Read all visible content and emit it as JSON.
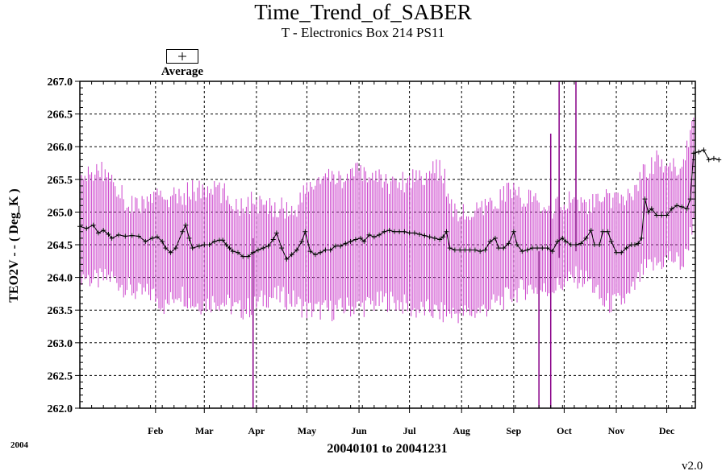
{
  "chart_data": {
    "type": "line",
    "title": "Time_Trend_of_SABER",
    "subtitle": "T - Electronics Box 214 PS11",
    "ylabel": "TEO2V  - - ( Deg_K )",
    "xlabel": "20040101 to 20041231",
    "year_label": "2004",
    "version": "v2.0",
    "legend": {
      "entries": [
        {
          "name": "Average",
          "marker": "+"
        }
      ],
      "placement": "top-left"
    },
    "ylim": [
      262.0,
      267.0
    ],
    "y_ticks": [
      "262.0",
      "262.5",
      "263.0",
      "263.5",
      "264.0",
      "264.5",
      "265.0",
      "265.5",
      "266.0",
      "266.5",
      "267.0"
    ],
    "x_month_ticks": [
      {
        "label": "Feb",
        "day": 46
      },
      {
        "label": "Mar",
        "day": 75
      },
      {
        "label": "Apr",
        "day": 106
      },
      {
        "label": "May",
        "day": 136
      },
      {
        "label": "Jun",
        "day": 167
      },
      {
        "label": "Jul",
        "day": 197
      },
      {
        "label": "Aug",
        "day": 228
      },
      {
        "label": "Sep",
        "day": 259
      },
      {
        "label": "Oct",
        "day": 289
      },
      {
        "label": "Nov",
        "day": 320
      },
      {
        "label": "Dec",
        "day": 350
      }
    ],
    "xlim_days": [
      1,
      367
    ],
    "grid": true,
    "colors": {
      "range": "#cc44cc",
      "average": "#000000",
      "grid": "#000000"
    },
    "series": [
      {
        "name": "Average",
        "points": [
          [
            1,
            264.78
          ],
          [
            5,
            264.75
          ],
          [
            9,
            264.8
          ],
          [
            12,
            264.68
          ],
          [
            15,
            264.72
          ],
          [
            18,
            264.66
          ],
          [
            20,
            264.6
          ],
          [
            24,
            264.65
          ],
          [
            28,
            264.63
          ],
          [
            32,
            264.64
          ],
          [
            36,
            264.63
          ],
          [
            40,
            264.55
          ],
          [
            44,
            264.6
          ],
          [
            47,
            264.62
          ],
          [
            50,
            264.55
          ],
          [
            52,
            264.45
          ],
          [
            55,
            264.38
          ],
          [
            58,
            264.45
          ],
          [
            62,
            264.7
          ],
          [
            64,
            264.8
          ],
          [
            66,
            264.6
          ],
          [
            68,
            264.45
          ],
          [
            72,
            264.48
          ],
          [
            75,
            264.5
          ],
          [
            78,
            264.5
          ],
          [
            81,
            264.55
          ],
          [
            84,
            264.57
          ],
          [
            86,
            264.57
          ],
          [
            88,
            264.5
          ],
          [
            90,
            264.45
          ],
          [
            92,
            264.4
          ],
          [
            95,
            264.38
          ],
          [
            98,
            264.32
          ],
          [
            101,
            264.32
          ],
          [
            104,
            264.38
          ],
          [
            107,
            264.42
          ],
          [
            110,
            264.45
          ],
          [
            113,
            264.48
          ],
          [
            116,
            264.58
          ],
          [
            118,
            264.68
          ],
          [
            121,
            264.45
          ],
          [
            124,
            264.28
          ],
          [
            127,
            264.35
          ],
          [
            130,
            264.42
          ],
          [
            133,
            264.55
          ],
          [
            135,
            264.7
          ],
          [
            138,
            264.4
          ],
          [
            141,
            264.35
          ],
          [
            144,
            264.38
          ],
          [
            147,
            264.42
          ],
          [
            150,
            264.42
          ],
          [
            153,
            264.48
          ],
          [
            156,
            264.48
          ],
          [
            159,
            264.52
          ],
          [
            162,
            264.55
          ],
          [
            165,
            264.58
          ],
          [
            168,
            264.6
          ],
          [
            170,
            264.55
          ],
          [
            173,
            264.65
          ],
          [
            176,
            264.62
          ],
          [
            179,
            264.65
          ],
          [
            182,
            264.7
          ],
          [
            185,
            264.72
          ],
          [
            188,
            264.7
          ],
          [
            191,
            264.7
          ],
          [
            194,
            264.7
          ],
          [
            197,
            264.68
          ],
          [
            200,
            264.68
          ],
          [
            203,
            264.66
          ],
          [
            206,
            264.64
          ],
          [
            209,
            264.62
          ],
          [
            212,
            264.6
          ],
          [
            215,
            264.58
          ],
          [
            217,
            264.62
          ],
          [
            219,
            264.7
          ],
          [
            221,
            264.45
          ],
          [
            224,
            264.42
          ],
          [
            227,
            264.42
          ],
          [
            230,
            264.42
          ],
          [
            233,
            264.42
          ],
          [
            236,
            264.42
          ],
          [
            239,
            264.4
          ],
          [
            242,
            264.42
          ],
          [
            245,
            264.55
          ],
          [
            248,
            264.6
          ],
          [
            250,
            264.45
          ],
          [
            253,
            264.45
          ],
          [
            256,
            264.52
          ],
          [
            259,
            264.7
          ],
          [
            261,
            264.5
          ],
          [
            264,
            264.4
          ],
          [
            267,
            264.42
          ],
          [
            270,
            264.45
          ],
          [
            273,
            264.45
          ],
          [
            276,
            264.45
          ],
          [
            279,
            264.45
          ],
          [
            282,
            264.4
          ],
          [
            285,
            264.55
          ],
          [
            288,
            264.6
          ],
          [
            290,
            264.55
          ],
          [
            293,
            264.5
          ],
          [
            296,
            264.5
          ],
          [
            299,
            264.52
          ],
          [
            302,
            264.6
          ],
          [
            305,
            264.72
          ],
          [
            307,
            264.5
          ],
          [
            310,
            264.5
          ],
          [
            312,
            264.7
          ],
          [
            315,
            264.7
          ],
          [
            317,
            264.55
          ],
          [
            320,
            264.38
          ],
          [
            323,
            264.38
          ],
          [
            326,
            264.45
          ],
          [
            329,
            264.5
          ],
          [
            331,
            264.5
          ],
          [
            333,
            264.52
          ],
          [
            335,
            264.6
          ],
          [
            337,
            265.2
          ],
          [
            339,
            265.0
          ],
          [
            341,
            265.05
          ],
          [
            344,
            264.95
          ],
          [
            347,
            264.95
          ],
          [
            350,
            264.95
          ],
          [
            353,
            265.05
          ],
          [
            356,
            265.1
          ],
          [
            359,
            265.08
          ],
          [
            362,
            265.05
          ],
          [
            364,
            265.2
          ],
          [
            366,
            265.9
          ],
          [
            369,
            265.92
          ],
          [
            372,
            265.95
          ],
          [
            375,
            265.8
          ],
          [
            378,
            265.82
          ],
          [
            381,
            265.8
          ]
        ]
      },
      {
        "name": "Range",
        "envelope": [
          [
            1,
            264.05,
            265.42
          ],
          [
            10,
            263.95,
            265.65
          ],
          [
            20,
            264.0,
            265.55
          ],
          [
            28,
            263.85,
            265.15
          ],
          [
            36,
            263.75,
            265.1
          ],
          [
            44,
            263.75,
            265.2
          ],
          [
            52,
            263.55,
            265.25
          ],
          [
            60,
            263.8,
            265.2
          ],
          [
            68,
            263.6,
            265.35
          ],
          [
            76,
            263.6,
            265.3
          ],
          [
            82,
            263.65,
            265.35
          ],
          [
            88,
            263.6,
            265.25
          ],
          [
            96,
            263.5,
            265.1
          ],
          [
            104,
            263.55,
            265.15
          ],
          [
            112,
            263.7,
            265.05
          ],
          [
            120,
            263.7,
            265.1
          ],
          [
            128,
            263.65,
            265.0
          ],
          [
            136,
            263.5,
            265.35
          ],
          [
            144,
            263.5,
            265.5
          ],
          [
            152,
            263.5,
            265.5
          ],
          [
            160,
            263.55,
            265.55
          ],
          [
            168,
            263.55,
            265.6
          ],
          [
            176,
            263.6,
            265.55
          ],
          [
            184,
            263.65,
            265.45
          ],
          [
            192,
            263.6,
            265.45
          ],
          [
            200,
            263.5,
            265.55
          ],
          [
            208,
            263.5,
            265.6
          ],
          [
            216,
            263.45,
            265.65
          ],
          [
            224,
            263.45,
            265.0
          ],
          [
            232,
            263.45,
            264.95
          ],
          [
            240,
            263.5,
            265.0
          ],
          [
            248,
            263.6,
            265.15
          ],
          [
            256,
            263.7,
            265.35
          ],
          [
            262,
            263.8,
            265.25
          ],
          [
            270,
            263.85,
            265.2
          ],
          [
            276,
            263.8,
            265.0
          ],
          [
            280,
            263.8,
            265.05
          ],
          [
            288,
            263.9,
            265.1
          ],
          [
            296,
            264.0,
            265.2
          ],
          [
            304,
            263.95,
            265.1
          ],
          [
            312,
            263.6,
            265.2
          ],
          [
            320,
            263.6,
            265.15
          ],
          [
            328,
            263.7,
            265.25
          ],
          [
            336,
            264.1,
            265.6
          ],
          [
            344,
            264.2,
            265.8
          ],
          [
            352,
            264.3,
            265.65
          ],
          [
            360,
            264.2,
            265.75
          ],
          [
            366,
            264.9,
            266.55
          ],
          [
            374,
            265.0,
            266.5
          ],
          [
            381,
            265.1,
            266.5
          ]
        ],
        "spikes": [
          {
            "day": 104,
            "low": 262.0,
            "high": 264.6
          },
          {
            "day": 274,
            "low": 262.0,
            "high": 264.4
          },
          {
            "day": 281,
            "low": 262.0,
            "high": 266.2
          },
          {
            "day": 286,
            "low": 264.3,
            "high": 267.0
          },
          {
            "day": 296,
            "low": 264.4,
            "high": 267.0
          }
        ]
      }
    ]
  }
}
